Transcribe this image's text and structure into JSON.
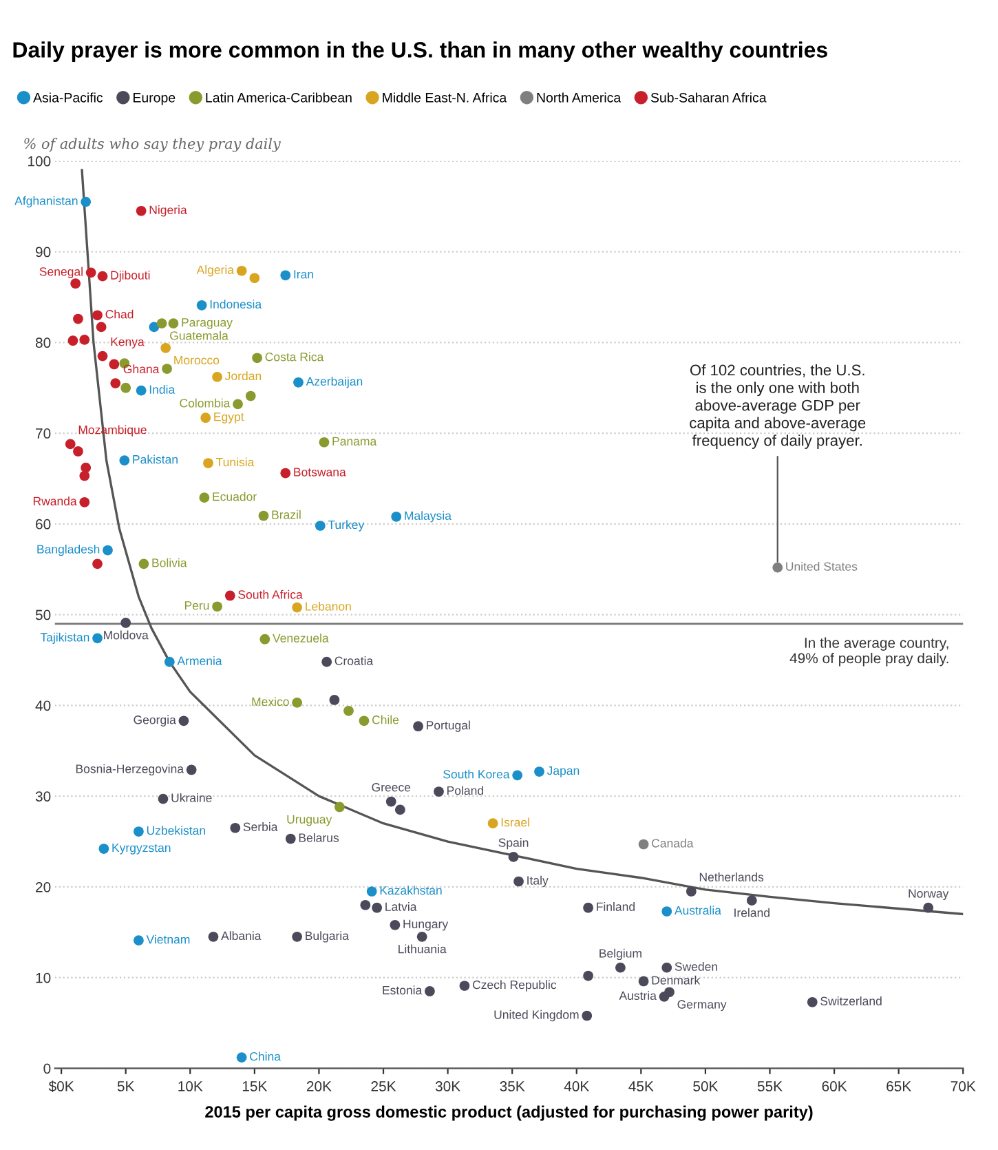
{
  "chart_data": {
    "type": "scatter",
    "title": "Daily prayer is more common in the U.S. than in many other wealthy countries",
    "ylabel": "% of adults who say they pray daily",
    "xlabel": "2015 per capita gross domestic product (adjusted for purchasing power parity)",
    "legend": "top",
    "marker": "circle",
    "grid": "y",
    "xlim": [
      -0.5,
      70
    ],
    "ylim": [
      0,
      100
    ],
    "xticks": [
      {
        "value": 0,
        "label": "$0K"
      },
      {
        "value": 5,
        "label": "5K"
      },
      {
        "value": 10,
        "label": "10K"
      },
      {
        "value": 15,
        "label": "15K"
      },
      {
        "value": 20,
        "label": "20K"
      },
      {
        "value": 25,
        "label": "25K"
      },
      {
        "value": 30,
        "label": "30K"
      },
      {
        "value": 35,
        "label": "35K"
      },
      {
        "value": 40,
        "label": "40K"
      },
      {
        "value": 45,
        "label": "45K"
      },
      {
        "value": 50,
        "label": "50K"
      },
      {
        "value": 55,
        "label": "55K"
      },
      {
        "value": 60,
        "label": "60K"
      },
      {
        "value": 65,
        "label": "65K"
      },
      {
        "value": 70,
        "label": "70K"
      }
    ],
    "yticks": [
      0,
      10,
      20,
      30,
      40,
      50,
      60,
      70,
      80,
      90,
      100
    ],
    "series": [
      {
        "name": "Asia-Pacific",
        "color": "#1a8fc9",
        "x": [
          1.9,
          6.2,
          7.2,
          10.9,
          17.4,
          18.4,
          4.9,
          26.0,
          20.1,
          3.6,
          2.8,
          8.4,
          6.0,
          3.3,
          24.1,
          6.0,
          14.0,
          35.4,
          37.1,
          47.0
        ],
        "values": [
          95.5,
          74.7,
          81.7,
          84.1,
          87.4,
          75.6,
          67.0,
          60.8,
          59.8,
          57.1,
          47.4,
          44.8,
          26.1,
          24.2,
          19.5,
          14.1,
          1.2,
          32.3,
          32.7,
          17.3
        ]
      },
      {
        "name": "Europe",
        "color": "#4a4a5a",
        "x": [
          5.0,
          20.6,
          21.2,
          27.7,
          9.5,
          10.1,
          7.9,
          25.6,
          26.3,
          29.3,
          13.5,
          17.8,
          23.6,
          24.5,
          25.9,
          11.8,
          18.3,
          28.0,
          28.6,
          31.3,
          35.1,
          35.5,
          48.9,
          53.6,
          67.3,
          40.9,
          43.4,
          47.0,
          40.9,
          45.2,
          47.2,
          46.8,
          40.8,
          58.3
        ],
        "values": [
          49.1,
          44.8,
          40.6,
          37.7,
          38.3,
          32.9,
          29.7,
          29.4,
          28.5,
          30.5,
          26.5,
          25.3,
          18.0,
          17.7,
          15.8,
          14.5,
          14.5,
          14.5,
          8.5,
          9.1,
          23.3,
          20.6,
          19.5,
          18.5,
          17.7,
          17.7,
          11.1,
          11.1,
          10.2,
          9.6,
          8.4,
          7.9,
          5.8,
          7.3
        ]
      },
      {
        "name": "Latin America-Caribbean",
        "color": "#8a9a2e",
        "x": [
          7.8,
          8.7,
          4.9,
          8.2,
          5.0,
          15.2,
          13.7,
          14.7,
          20.4,
          11.1,
          15.7,
          6.4,
          12.1,
          15.8,
          18.3,
          22.3,
          23.5,
          21.6
        ],
        "values": [
          82.1,
          82.1,
          77.7,
          77.1,
          75.0,
          78.3,
          73.2,
          74.1,
          69.0,
          62.9,
          60.9,
          55.6,
          50.9,
          47.3,
          40.3,
          39.4,
          38.3,
          28.8
        ]
      },
      {
        "name": "Middle East-N. Africa",
        "color": "#d9a520",
        "x": [
          14.0,
          15.0,
          8.1,
          12.1,
          11.2,
          11.4,
          18.3,
          33.5
        ],
        "values": [
          87.9,
          87.1,
          79.4,
          76.2,
          71.7,
          66.7,
          50.8,
          27.0
        ]
      },
      {
        "name": "North America",
        "color": "#7f7f7f",
        "x": [
          55.6,
          45.2
        ],
        "values": [
          55.2,
          24.7
        ]
      },
      {
        "name": "Sub-Saharan Africa",
        "color": "#c8202a",
        "x": [
          6.2,
          2.3,
          3.2,
          1.1,
          2.8,
          1.3,
          3.1,
          0.9,
          1.8,
          3.2,
          4.1,
          4.2,
          0.7,
          1.3,
          1.9,
          1.8,
          1.8,
          17.4,
          2.8,
          13.1
        ],
        "values": [
          94.5,
          87.7,
          87.3,
          86.5,
          83.0,
          82.6,
          81.7,
          80.2,
          80.3,
          78.5,
          77.6,
          75.5,
          68.8,
          68.0,
          66.2,
          65.3,
          62.4,
          65.6,
          55.6,
          52.1
        ]
      },
      {
        "type": "line",
        "marker": "none",
        "color": "#555555",
        "x": [
          1.6,
          2.5,
          3.5,
          4.5,
          6,
          7,
          8.4,
          10,
          15,
          20,
          25,
          30,
          35,
          40,
          45,
          50,
          55,
          60,
          65,
          70
        ],
        "values": [
          99,
          80,
          67,
          59.5,
          52,
          48.5,
          44.8,
          41.5,
          34.5,
          30,
          27,
          25,
          23.5,
          22,
          21,
          19.7,
          18.9,
          18.2,
          17.6,
          17
        ]
      }
    ],
    "ref_lines": [
      {
        "axis": "y",
        "value": 49,
        "label": "In the average country,\n49% of people pray daily.",
        "color": "#777777"
      }
    ],
    "annotations": [
      {
        "text": "Afghanistan",
        "x": 1.9,
        "y": 95.5
      },
      {
        "text": "Nigeria",
        "x": 6.2,
        "y": 94.5
      },
      {
        "text": "Senegal",
        "x": 2.3,
        "y": 87.7
      },
      {
        "text": "Djibouti",
        "x": 3.2,
        "y": 87.3
      },
      {
        "text": "Chad",
        "x": 2.8,
        "y": 83.0
      },
      {
        "text": "Kenya",
        "x": 3.2,
        "y": 78.5
      },
      {
        "text": "Ghana",
        "x": 4.2,
        "y": 75.5
      },
      {
        "text": "Mozambique",
        "x": 0.7,
        "y": 68.8
      },
      {
        "text": "Rwanda",
        "x": 1.8,
        "y": 62.4
      },
      {
        "text": "India",
        "x": 6.2,
        "y": 74.7
      },
      {
        "text": "Guatemala",
        "x": 7.8,
        "y": 82.1
      },
      {
        "text": "Indonesia",
        "x": 10.9,
        "y": 84.1
      },
      {
        "text": "Paraguay",
        "x": 8.7,
        "y": 82.1
      },
      {
        "text": "Morocco",
        "x": 8.1,
        "y": 79.4
      },
      {
        "text": "Algeria",
        "x": 14.0,
        "y": 87.9
      },
      {
        "text": "Iran",
        "x": 17.4,
        "y": 87.4
      },
      {
        "text": "Costa Rica",
        "x": 15.2,
        "y": 78.3
      },
      {
        "text": "Jordan",
        "x": 12.1,
        "y": 76.2
      },
      {
        "text": "Azerbaijan",
        "x": 18.4,
        "y": 75.6
      },
      {
        "text": "Colombia",
        "x": 13.7,
        "y": 73.2
      },
      {
        "text": "Egypt",
        "x": 11.2,
        "y": 71.7
      },
      {
        "text": "Panama",
        "x": 20.4,
        "y": 69.0
      },
      {
        "text": "Pakistan",
        "x": 4.9,
        "y": 67.0
      },
      {
        "text": "Tunisia",
        "x": 11.4,
        "y": 66.7
      },
      {
        "text": "Botswana",
        "x": 17.4,
        "y": 65.6
      },
      {
        "text": "Ecuador",
        "x": 11.1,
        "y": 62.9
      },
      {
        "text": "Brazil",
        "x": 15.7,
        "y": 60.9
      },
      {
        "text": "Turkey",
        "x": 20.1,
        "y": 59.8
      },
      {
        "text": "Malaysia",
        "x": 26.0,
        "y": 60.8
      },
      {
        "text": "Bangladesh",
        "x": 3.6,
        "y": 57.1
      },
      {
        "text": "Bolivia",
        "x": 6.4,
        "y": 55.6
      },
      {
        "text": "South Africa",
        "x": 13.1,
        "y": 52.1
      },
      {
        "text": "Peru",
        "x": 12.1,
        "y": 50.9
      },
      {
        "text": "Lebanon",
        "x": 18.3,
        "y": 50.8
      },
      {
        "text": "Moldova",
        "x": 5.0,
        "y": 49.1
      },
      {
        "text": "Tajikistan",
        "x": 2.8,
        "y": 47.4
      },
      {
        "text": "Venezuela",
        "x": 15.8,
        "y": 47.3
      },
      {
        "text": "Armenia",
        "x": 8.4,
        "y": 44.8
      },
      {
        "text": "Croatia",
        "x": 20.6,
        "y": 44.8
      },
      {
        "text": "Mexico",
        "x": 18.3,
        "y": 40.3
      },
      {
        "text": "Chile",
        "x": 23.5,
        "y": 38.3
      },
      {
        "text": "Portugal",
        "x": 27.7,
        "y": 37.7
      },
      {
        "text": "Georgia",
        "x": 9.5,
        "y": 38.3
      },
      {
        "text": "Bosnia-Herzegovina",
        "x": 10.1,
        "y": 32.9
      },
      {
        "text": "Ukraine",
        "x": 7.9,
        "y": 29.7
      },
      {
        "text": "Greece",
        "x": 25.6,
        "y": 29.4
      },
      {
        "text": "Poland",
        "x": 29.3,
        "y": 30.5
      },
      {
        "text": "Uruguay",
        "x": 21.6,
        "y": 28.8
      },
      {
        "text": "Uzbekistan",
        "x": 6.0,
        "y": 26.1
      },
      {
        "text": "Kyrgyzstan",
        "x": 3.3,
        "y": 24.2
      },
      {
        "text": "Serbia",
        "x": 13.5,
        "y": 26.5
      },
      {
        "text": "Belarus",
        "x": 17.8,
        "y": 25.3
      },
      {
        "text": "Kazakhstan",
        "x": 24.1,
        "y": 19.5
      },
      {
        "text": "Latvia",
        "x": 24.5,
        "y": 17.7
      },
      {
        "text": "Hungary",
        "x": 25.9,
        "y": 15.8
      },
      {
        "text": "Vietnam",
        "x": 6.0,
        "y": 14.1
      },
      {
        "text": "Albania",
        "x": 11.8,
        "y": 14.5
      },
      {
        "text": "Bulgaria",
        "x": 18.3,
        "y": 14.5
      },
      {
        "text": "Lithuania",
        "x": 28.0,
        "y": 14.5
      },
      {
        "text": "Estonia",
        "x": 28.6,
        "y": 8.5
      },
      {
        "text": "Czech Republic",
        "x": 31.3,
        "y": 9.1
      },
      {
        "text": "China",
        "x": 14.0,
        "y": 1.2
      },
      {
        "text": "United States",
        "x": 55.6,
        "y": 55.2
      },
      {
        "text": "Of 102 countries, the U.S.\nis the only one with both\nabove-average GDP per\ncapita and above-average\nfrequency of daily prayer.",
        "x": 55.6,
        "y": 55.2
      },
      {
        "text": "South Korea",
        "x": 35.4,
        "y": 32.3
      },
      {
        "text": "Japan",
        "x": 37.1,
        "y": 32.7
      },
      {
        "text": "Israel",
        "x": 33.5,
        "y": 27.0
      },
      {
        "text": "Spain",
        "x": 35.1,
        "y": 23.3
      },
      {
        "text": "Italy",
        "x": 35.5,
        "y": 20.6
      },
      {
        "text": "Canada",
        "x": 45.2,
        "y": 24.7
      },
      {
        "text": "Netherlands",
        "x": 48.9,
        "y": 19.5
      },
      {
        "text": "Ireland",
        "x": 53.6,
        "y": 18.5
      },
      {
        "text": "Norway",
        "x": 67.3,
        "y": 17.7
      },
      {
        "text": "Finland",
        "x": 40.9,
        "y": 17.7
      },
      {
        "text": "Australia",
        "x": 47.0,
        "y": 17.3
      },
      {
        "text": "Belgium",
        "x": 43.4,
        "y": 11.1
      },
      {
        "text": "Sweden",
        "x": 47.0,
        "y": 11.1
      },
      {
        "text": "Denmark",
        "x": 45.2,
        "y": 9.6
      },
      {
        "text": "Germany",
        "x": 47.2,
        "y": 8.4
      },
      {
        "text": "Austria",
        "x": 46.8,
        "y": 7.9
      },
      {
        "text": "United Kingdom",
        "x": 40.8,
        "y": 5.8
      },
      {
        "text": "Switzerland",
        "x": 58.3,
        "y": 7.3
      }
    ]
  }
}
